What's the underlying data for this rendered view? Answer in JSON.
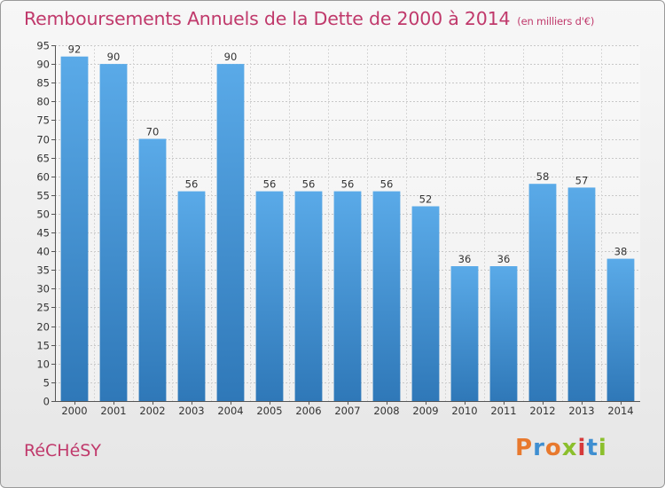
{
  "header": {
    "title": "Remboursements Annuels de la Dette de 2000 à 2014",
    "unit_note": "(en milliers d'€)"
  },
  "footer": {
    "town": "RéCHéSY",
    "logo_text": "Proxiti",
    "logo_colors": [
      "#e8792e",
      "#3f8fd1",
      "#e8792e",
      "#8bbf2c",
      "#d63a3a",
      "#3f8fd1",
      "#8bbf2c"
    ]
  },
  "colors": {
    "bar_top": "#5aaae8",
    "bar_bottom": "#2f78b8",
    "title": "#c0396b"
  },
  "chart_data": {
    "type": "bar",
    "title": "Remboursements Annuels de la Dette de 2000 à 2014",
    "subtitle": "(en milliers d'€)",
    "categories": [
      "2000",
      "2001",
      "2002",
      "2003",
      "2004",
      "2005",
      "2006",
      "2007",
      "2008",
      "2009",
      "2010",
      "2011",
      "2012",
      "2013",
      "2014"
    ],
    "values": [
      92,
      90,
      70,
      56,
      90,
      56,
      56,
      56,
      56,
      52,
      36,
      36,
      58,
      57,
      38
    ],
    "ylim": [
      0,
      95
    ],
    "yticks": [
      0,
      5,
      10,
      15,
      20,
      25,
      30,
      35,
      40,
      45,
      50,
      55,
      60,
      65,
      70,
      75,
      80,
      85,
      90,
      95
    ],
    "grid": true,
    "xlabel": "",
    "ylabel": ""
  }
}
